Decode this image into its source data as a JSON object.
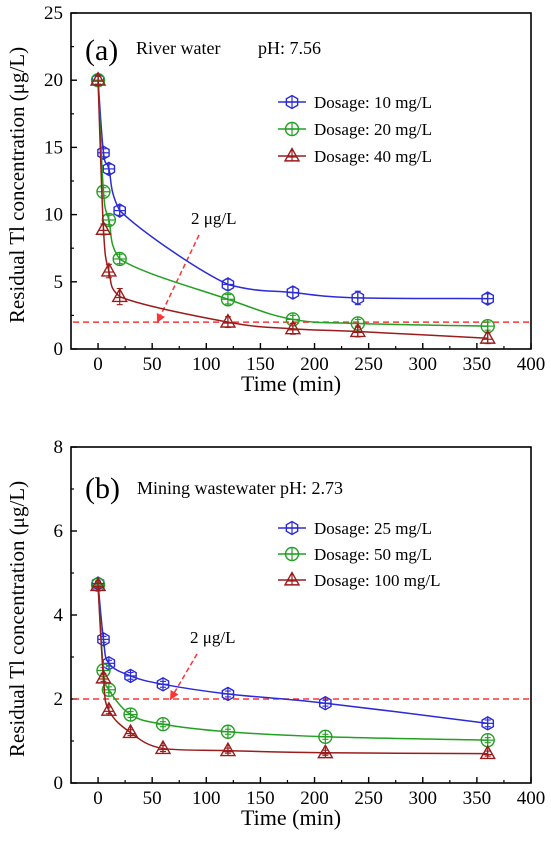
{
  "chart_data": [
    {
      "type": "line",
      "panel_label": "(a)",
      "title": "River water",
      "subtitle": "pH: 7.56",
      "xlabel": "Time (min)",
      "ylabel": "Residual Tl concentration (μg/L)",
      "xlim": [
        -25,
        400
      ],
      "ylim": [
        0,
        25
      ],
      "xticks": [
        0,
        50,
        100,
        150,
        200,
        250,
        300,
        350,
        400
      ],
      "yticks": [
        0,
        5,
        10,
        15,
        20,
        25
      ],
      "grid": false,
      "legend_position": "upper-right",
      "threshold": {
        "value": 2,
        "label": "2 μg/L",
        "color": "#ff3333"
      },
      "series": [
        {
          "name": "Dosage: 10 mg/L",
          "color": "#2b2bd9",
          "marker": "hexagon",
          "x": [
            0,
            5,
            10,
            20,
            120,
            180,
            240,
            360
          ],
          "y": [
            20.0,
            14.6,
            13.4,
            10.3,
            4.8,
            4.2,
            3.8,
            3.75
          ],
          "err": [
            0.3,
            0.3,
            0.35,
            0.35,
            0.4,
            0.4,
            0.5,
            0.35
          ]
        },
        {
          "name": "Dosage: 20 mg/L",
          "color": "#22a022",
          "marker": "circle-plus",
          "x": [
            0,
            5,
            10,
            20,
            120,
            180,
            240,
            360
          ],
          "y": [
            20.0,
            11.7,
            9.6,
            6.7,
            3.7,
            2.2,
            1.9,
            1.7
          ],
          "err": [
            0.3,
            0.3,
            0.35,
            0.35,
            0.35,
            0.3,
            0.3,
            0.3
          ]
        },
        {
          "name": "Dosage: 40 mg/L",
          "color": "#9b1c1c",
          "marker": "triangle-plus",
          "x": [
            0,
            5,
            10,
            20,
            120,
            180,
            240,
            360
          ],
          "y": [
            20.0,
            8.9,
            5.8,
            3.9,
            2.0,
            1.5,
            1.3,
            0.8
          ],
          "err": [
            0.3,
            0.4,
            0.5,
            0.6,
            0.4,
            0.4,
            0.4,
            0.4
          ]
        }
      ]
    },
    {
      "type": "line",
      "panel_label": "(b)",
      "title": "Mining wastewater",
      "subtitle": "pH: 2.73",
      "xlabel": "Time (min)",
      "ylabel": "Residual Tl concentration (μg/L)",
      "xlim": [
        -25,
        400
      ],
      "ylim": [
        0,
        8
      ],
      "xticks": [
        0,
        50,
        100,
        150,
        200,
        250,
        300,
        350,
        400
      ],
      "yticks": [
        0,
        2,
        4,
        6,
        8
      ],
      "grid": false,
      "legend_position": "right",
      "threshold": {
        "value": 2,
        "label": "2 μg/L",
        "color": "#ff3333"
      },
      "series": [
        {
          "name": "Dosage: 25 mg/L",
          "color": "#2b2bd9",
          "marker": "hexagon",
          "x": [
            0,
            5,
            10,
            30,
            60,
            120,
            210,
            360
          ],
          "y": [
            4.75,
            3.42,
            2.85,
            2.55,
            2.35,
            2.12,
            1.9,
            1.42
          ],
          "err": [
            0.06,
            0.07,
            0.07,
            0.08,
            0.07,
            0.07,
            0.07,
            0.08
          ]
        },
        {
          "name": "Dosage: 50 mg/L",
          "color": "#22a022",
          "marker": "circle-plus",
          "x": [
            0,
            5,
            10,
            30,
            60,
            120,
            210,
            360
          ],
          "y": [
            4.72,
            2.68,
            2.22,
            1.63,
            1.4,
            1.22,
            1.1,
            1.02
          ],
          "err": [
            0.06,
            0.07,
            0.07,
            0.07,
            0.06,
            0.06,
            0.06,
            0.06
          ]
        },
        {
          "name": "Dosage: 100 mg/L",
          "color": "#9b1c1c",
          "marker": "triangle-plus",
          "x": [
            0,
            5,
            10,
            30,
            60,
            120,
            210,
            360
          ],
          "y": [
            4.7,
            2.5,
            1.73,
            1.2,
            0.82,
            0.77,
            0.72,
            0.7
          ],
          "err": [
            0.06,
            0.08,
            0.08,
            0.07,
            0.07,
            0.06,
            0.06,
            0.06
          ]
        }
      ]
    }
  ]
}
